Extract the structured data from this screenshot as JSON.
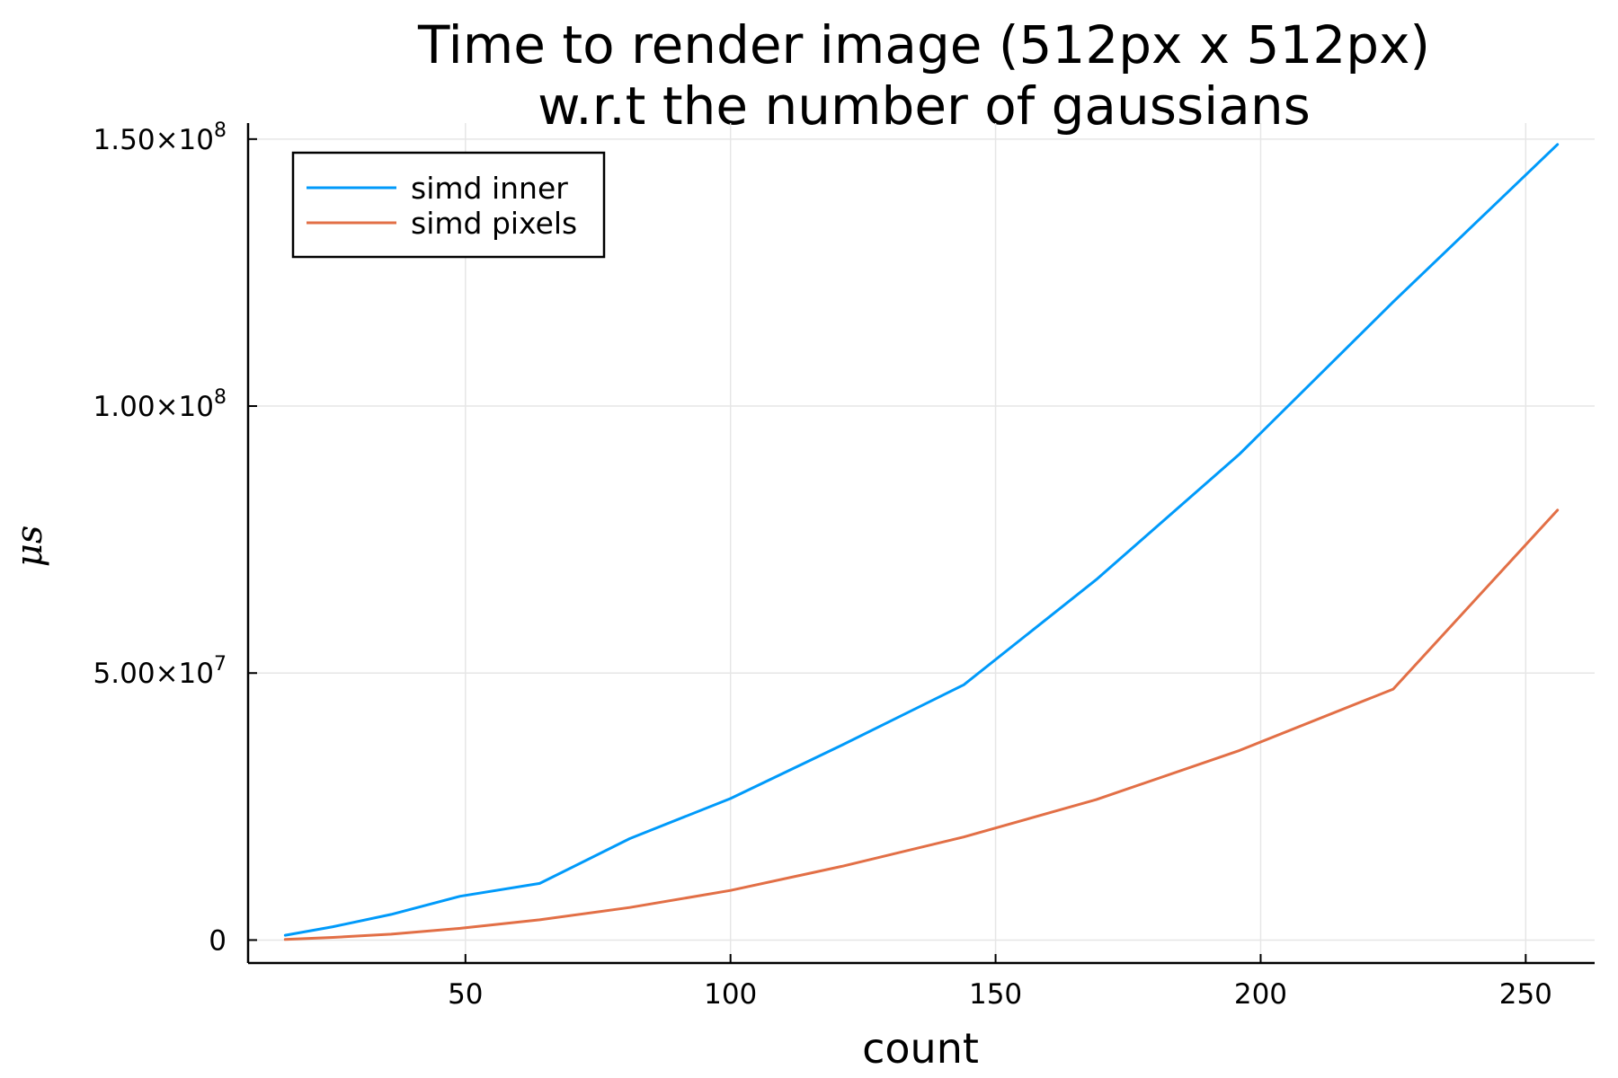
{
  "chart_data": {
    "type": "line",
    "title_lines": [
      "Time to render image (512px x 512px)",
      "w.r.t the number of gaussians"
    ],
    "xlabel": "count",
    "ylabel": "μs",
    "xlim": [
      9,
      263
    ],
    "ylim": [
      -4300000,
      153000000
    ],
    "x_ticks": [
      50,
      100,
      150,
      200,
      250
    ],
    "y_ticks": [
      {
        "value": 0,
        "mantissa": "0",
        "exponent": ""
      },
      {
        "value": 50000000,
        "mantissa": "5.00×10",
        "exponent": "7"
      },
      {
        "value": 100000000,
        "mantissa": "1.00×10",
        "exponent": "8"
      },
      {
        "value": 150000000,
        "mantissa": "1.50×10",
        "exponent": "8"
      }
    ],
    "grid": true,
    "legend_position": "top-left",
    "x": [
      16,
      25,
      36,
      49,
      64,
      81,
      100,
      121,
      144,
      169,
      196,
      225,
      256
    ],
    "series": [
      {
        "name": "simd inner",
        "color": "#009AFA",
        "values": [
          900000,
          2500000,
          4800000,
          8200000,
          10600000,
          19000000,
          26500000,
          36500000,
          47800000,
          67500000,
          91000000,
          119500000,
          149000000
        ]
      },
      {
        "name": "simd pixels",
        "color": "#E26F46",
        "values": [
          100000,
          500000,
          1100000,
          2200000,
          3800000,
          6100000,
          9300000,
          13800000,
          19300000,
          26300000,
          35500000,
          47000000,
          80500000
        ]
      }
    ]
  }
}
